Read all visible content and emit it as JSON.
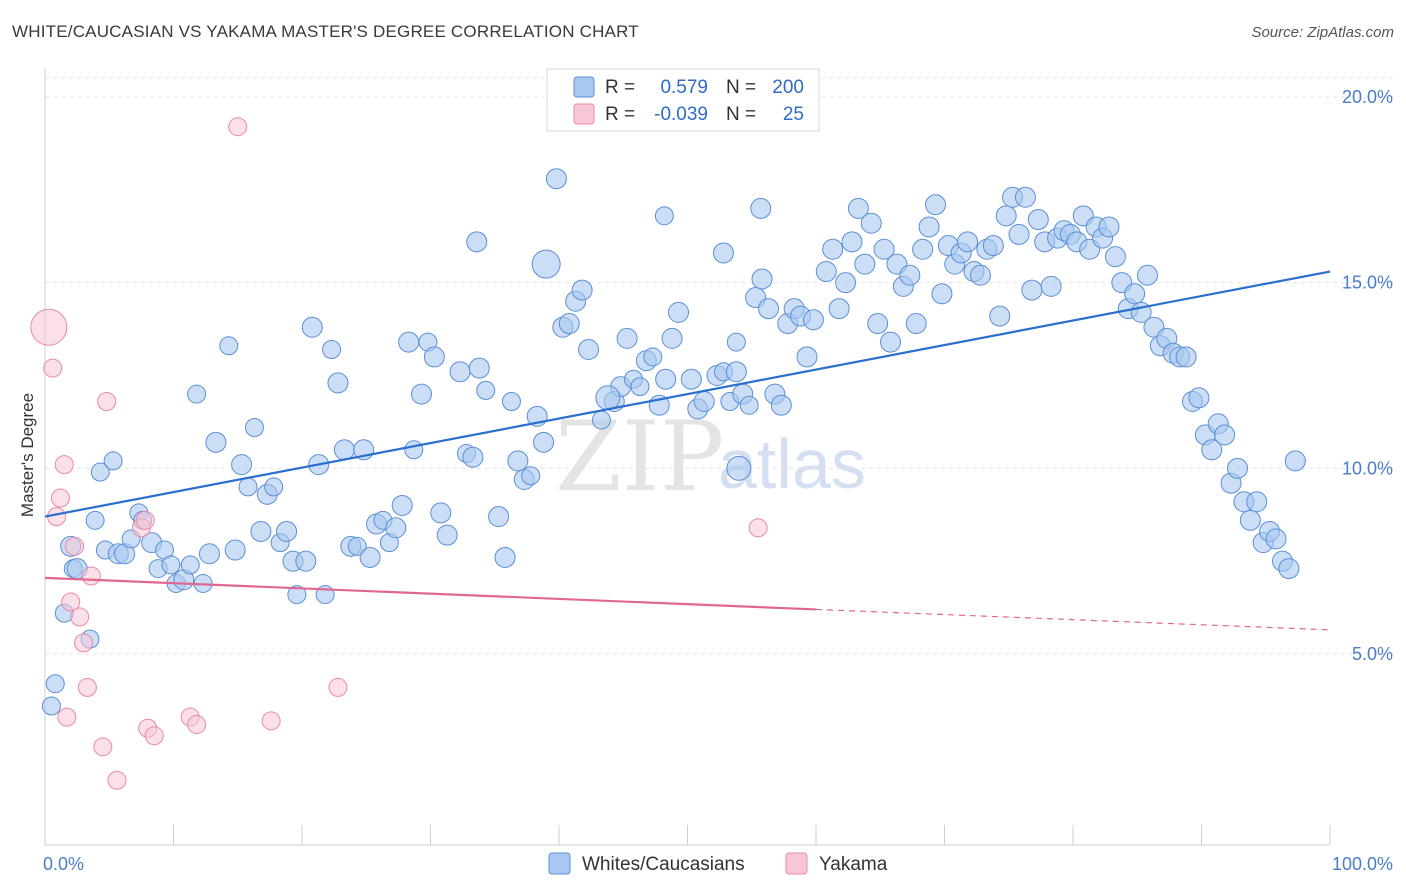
{
  "title": "WHITE/CAUCASIAN VS YAKAMA MASTER'S DEGREE CORRELATION CHART",
  "source": "Source: ZipAtlas.com",
  "watermark": {
    "zip": "ZIP",
    "atlas": "atlas"
  },
  "colors": {
    "blue_fill": "#a9c8f0",
    "blue_stroke": "#5b8fd6",
    "blue_line": "#2a6fcf",
    "pink_fill": "#f8c6d6",
    "pink_stroke": "#e88aa6",
    "pink_line": "#e06890",
    "grid": "#e4e4e4",
    "axis_label": "#4a7cc9"
  },
  "legend_top": {
    "rows": [
      {
        "r_label": "R =",
        "r_value": "0.579",
        "n_label": "N =",
        "n_value": "200"
      },
      {
        "r_label": "R =",
        "r_value": "-0.039",
        "n_label": "N =",
        "n_value": "25"
      }
    ]
  },
  "legend_bottom": [
    {
      "label": "Whites/Caucasians"
    },
    {
      "label": "Yakama"
    }
  ],
  "chart_data": {
    "type": "scatter",
    "title": "WHITE/CAUCASIAN VS YAKAMA MASTER'S DEGREE CORRELATION CHART",
    "xlabel": "",
    "ylabel": "Master's Degree",
    "xlim": [
      0,
      100
    ],
    "ylim": [
      0,
      20
    ],
    "x_tick_labels": [
      "0.0%",
      "100.0%"
    ],
    "y_ticks": [
      5,
      10,
      15,
      20
    ],
    "y_tick_labels": [
      "5.0%",
      "10.0%",
      "15.0%",
      "20.0%"
    ],
    "grid": true,
    "series": [
      {
        "name": "Whites/Caucasians",
        "r": 0.579,
        "n": 200,
        "trend": {
          "x": [
            0,
            100
          ],
          "y": [
            8.7,
            15.3
          ]
        },
        "points": [
          [
            0.5,
            3.6,
            9
          ],
          [
            0.8,
            4.2,
            9
          ],
          [
            1.5,
            6.1,
            9
          ],
          [
            2.0,
            7.9,
            10
          ],
          [
            2.2,
            7.3,
            9
          ],
          [
            2.5,
            7.3,
            10
          ],
          [
            3.5,
            5.4,
            9
          ],
          [
            3.9,
            8.6,
            9
          ],
          [
            4.3,
            9.9,
            9
          ],
          [
            4.7,
            7.8,
            9
          ],
          [
            5.3,
            10.2,
            9
          ],
          [
            5.7,
            7.7,
            10
          ],
          [
            6.2,
            7.7,
            10
          ],
          [
            6.7,
            8.1,
            9
          ],
          [
            7.3,
            8.8,
            9
          ],
          [
            7.6,
            8.6,
            9
          ],
          [
            8.3,
            8.0,
            10
          ],
          [
            8.8,
            7.3,
            9
          ],
          [
            9.3,
            7.8,
            9
          ],
          [
            9.8,
            7.4,
            9
          ],
          [
            10.2,
            6.9,
            9
          ],
          [
            10.8,
            7.0,
            10
          ],
          [
            11.3,
            7.4,
            9
          ],
          [
            11.8,
            12.0,
            9
          ],
          [
            12.3,
            6.9,
            9
          ],
          [
            12.8,
            7.7,
            10
          ],
          [
            13.3,
            10.7,
            10
          ],
          [
            14.3,
            13.3,
            9
          ],
          [
            14.8,
            7.8,
            10
          ],
          [
            15.3,
            10.1,
            10
          ],
          [
            15.8,
            9.5,
            9
          ],
          [
            16.3,
            11.1,
            9
          ],
          [
            16.8,
            8.3,
            10
          ],
          [
            17.3,
            9.3,
            10
          ],
          [
            17.8,
            9.5,
            9
          ],
          [
            18.3,
            8.0,
            9
          ],
          [
            18.8,
            8.3,
            10
          ],
          [
            19.3,
            7.5,
            10
          ],
          [
            19.6,
            6.6,
            9
          ],
          [
            20.3,
            7.5,
            10
          ],
          [
            20.8,
            13.8,
            10
          ],
          [
            21.3,
            10.1,
            10
          ],
          [
            21.8,
            6.6,
            9
          ],
          [
            22.3,
            13.2,
            9
          ],
          [
            22.8,
            12.3,
            10
          ],
          [
            23.3,
            10.5,
            10
          ],
          [
            23.8,
            7.9,
            10
          ],
          [
            24.3,
            7.9,
            9
          ],
          [
            24.8,
            10.5,
            10
          ],
          [
            25.3,
            7.6,
            10
          ],
          [
            25.8,
            8.5,
            10
          ],
          [
            26.3,
            8.6,
            9
          ],
          [
            26.8,
            8.0,
            9
          ],
          [
            27.3,
            8.4,
            10
          ],
          [
            27.8,
            9.0,
            10
          ],
          [
            28.3,
            13.4,
            10
          ],
          [
            28.7,
            10.5,
            9
          ],
          [
            29.3,
            12.0,
            10
          ],
          [
            29.8,
            13.4,
            9
          ],
          [
            30.3,
            13.0,
            10
          ],
          [
            30.8,
            8.8,
            10
          ],
          [
            31.3,
            8.2,
            10
          ],
          [
            32.3,
            12.6,
            10
          ],
          [
            32.8,
            10.4,
            9
          ],
          [
            33.3,
            10.3,
            10
          ],
          [
            33.8,
            12.7,
            10
          ],
          [
            34.3,
            12.1,
            9
          ],
          [
            35.3,
            8.7,
            10
          ],
          [
            35.8,
            7.6,
            10
          ],
          [
            36.3,
            11.8,
            9
          ],
          [
            36.8,
            10.2,
            10
          ],
          [
            37.3,
            9.7,
            10
          ],
          [
            37.8,
            9.8,
            9
          ],
          [
            38.3,
            11.4,
            10
          ],
          [
            38.8,
            10.7,
            10
          ],
          [
            40.3,
            13.8,
            10
          ],
          [
            40.8,
            13.9,
            10
          ],
          [
            41.3,
            14.5,
            10
          ],
          [
            41.8,
            14.8,
            10
          ],
          [
            42.3,
            13.2,
            10
          ],
          [
            43.3,
            11.3,
            9
          ],
          [
            44.3,
            11.8,
            10
          ],
          [
            44.8,
            12.2,
            10
          ],
          [
            45.3,
            13.5,
            10
          ],
          [
            45.8,
            12.4,
            9
          ],
          [
            46.3,
            12.2,
            9
          ],
          [
            46.8,
            12.9,
            10
          ],
          [
            47.3,
            13.0,
            9
          ],
          [
            47.8,
            11.7,
            10
          ],
          [
            48.3,
            12.4,
            10
          ],
          [
            48.8,
            13.5,
            10
          ],
          [
            49.3,
            14.2,
            10
          ],
          [
            50.3,
            12.4,
            10
          ],
          [
            50.8,
            11.6,
            10
          ],
          [
            51.3,
            11.8,
            10
          ],
          [
            52.3,
            12.5,
            10
          ],
          [
            52.8,
            12.6,
            9
          ],
          [
            53.3,
            11.8,
            9
          ],
          [
            53.8,
            12.6,
            10
          ],
          [
            54.3,
            12.0,
            10
          ],
          [
            54.8,
            11.7,
            9
          ],
          [
            55.3,
            14.6,
            10
          ],
          [
            55.8,
            15.1,
            10
          ],
          [
            56.3,
            14.3,
            10
          ],
          [
            56.8,
            12.0,
            10
          ],
          [
            57.3,
            11.7,
            10
          ],
          [
            57.8,
            13.9,
            10
          ],
          [
            58.3,
            14.3,
            10
          ],
          [
            58.8,
            14.1,
            10
          ],
          [
            59.3,
            13.0,
            10
          ],
          [
            59.8,
            14.0,
            10
          ],
          [
            60.8,
            15.3,
            10
          ],
          [
            61.3,
            15.9,
            10
          ],
          [
            61.8,
            14.3,
            10
          ],
          [
            62.3,
            15.0,
            10
          ],
          [
            62.8,
            16.1,
            10
          ],
          [
            63.3,
            17.0,
            10
          ],
          [
            63.8,
            15.5,
            10
          ],
          [
            64.3,
            16.6,
            10
          ],
          [
            64.8,
            13.9,
            10
          ],
          [
            65.3,
            15.9,
            10
          ],
          [
            65.8,
            13.4,
            10
          ],
          [
            66.3,
            15.5,
            10
          ],
          [
            66.8,
            14.9,
            10
          ],
          [
            67.3,
            15.2,
            10
          ],
          [
            67.8,
            13.9,
            10
          ],
          [
            68.3,
            15.9,
            10
          ],
          [
            68.8,
            16.5,
            10
          ],
          [
            69.3,
            17.1,
            10
          ],
          [
            69.8,
            14.7,
            10
          ],
          [
            70.3,
            16.0,
            10
          ],
          [
            70.8,
            15.5,
            10
          ],
          [
            71.3,
            15.8,
            10
          ],
          [
            71.8,
            16.1,
            10
          ],
          [
            72.3,
            15.3,
            10
          ],
          [
            72.8,
            15.2,
            10
          ],
          [
            73.3,
            15.9,
            10
          ],
          [
            73.8,
            16.0,
            10
          ],
          [
            74.3,
            14.1,
            10
          ],
          [
            74.8,
            16.8,
            10
          ],
          [
            75.3,
            17.3,
            10
          ],
          [
            75.8,
            16.3,
            10
          ],
          [
            76.3,
            17.3,
            10
          ],
          [
            76.8,
            14.8,
            10
          ],
          [
            77.3,
            16.7,
            10
          ],
          [
            77.8,
            16.1,
            10
          ],
          [
            78.3,
            14.9,
            10
          ],
          [
            78.8,
            16.2,
            10
          ],
          [
            79.3,
            16.4,
            10
          ],
          [
            79.8,
            16.3,
            10
          ],
          [
            80.3,
            16.1,
            10
          ],
          [
            80.8,
            16.8,
            10
          ],
          [
            81.3,
            15.9,
            10
          ],
          [
            81.8,
            16.5,
            10
          ],
          [
            82.3,
            16.2,
            10
          ],
          [
            82.8,
            16.5,
            10
          ],
          [
            83.3,
            15.7,
            10
          ],
          [
            83.8,
            15.0,
            10
          ],
          [
            84.3,
            14.3,
            10
          ],
          [
            84.8,
            14.7,
            10
          ],
          [
            85.3,
            14.2,
            10
          ],
          [
            85.8,
            15.2,
            10
          ],
          [
            86.3,
            13.8,
            10
          ],
          [
            86.8,
            13.3,
            10
          ],
          [
            87.3,
            13.5,
            10
          ],
          [
            87.8,
            13.1,
            10
          ],
          [
            88.3,
            13.0,
            10
          ],
          [
            88.8,
            13.0,
            10
          ],
          [
            89.3,
            11.8,
            10
          ],
          [
            89.8,
            11.9,
            10
          ],
          [
            90.3,
            10.9,
            10
          ],
          [
            90.8,
            10.5,
            10
          ],
          [
            91.3,
            11.2,
            10
          ],
          [
            91.8,
            10.9,
            10
          ],
          [
            92.3,
            9.6,
            10
          ],
          [
            92.8,
            10.0,
            10
          ],
          [
            93.3,
            9.1,
            10
          ],
          [
            93.8,
            8.6,
            10
          ],
          [
            94.3,
            9.1,
            10
          ],
          [
            94.8,
            8.0,
            10
          ],
          [
            95.3,
            8.3,
            10
          ],
          [
            95.8,
            8.1,
            10
          ],
          [
            96.3,
            7.5,
            10
          ],
          [
            96.8,
            7.3,
            10
          ],
          [
            97.3,
            10.2,
            10
          ],
          [
            39.0,
            15.5,
            14
          ],
          [
            39.8,
            17.8,
            10
          ],
          [
            43.8,
            11.9,
            12
          ],
          [
            48.2,
            16.8,
            9
          ],
          [
            52.8,
            15.8,
            10
          ],
          [
            53.8,
            13.4,
            9
          ],
          [
            33.6,
            16.1,
            10
          ],
          [
            54.0,
            10.0,
            12
          ],
          [
            55.7,
            17.0,
            10
          ]
        ]
      },
      {
        "name": "Yakama",
        "r": -0.039,
        "n": 25,
        "trend_solid": {
          "x": [
            0,
            60
          ],
          "y": [
            7.05,
            6.2
          ]
        },
        "trend_dashed": {
          "x": [
            60,
            100
          ],
          "y": [
            6.2,
            5.65
          ]
        },
        "points": [
          [
            0.3,
            13.8,
            18
          ],
          [
            0.6,
            12.7,
            9
          ],
          [
            0.9,
            8.7,
            9
          ],
          [
            1.2,
            9.2,
            9
          ],
          [
            1.5,
            10.1,
            9
          ],
          [
            1.7,
            3.3,
            9
          ],
          [
            2.0,
            6.4,
            9
          ],
          [
            2.3,
            7.9,
            9
          ],
          [
            2.7,
            6.0,
            9
          ],
          [
            3.0,
            5.3,
            9
          ],
          [
            3.3,
            4.1,
            9
          ],
          [
            3.6,
            7.1,
            9
          ],
          [
            4.5,
            2.5,
            9
          ],
          [
            4.8,
            11.8,
            9
          ],
          [
            5.6,
            1.6,
            9
          ],
          [
            7.5,
            8.4,
            9
          ],
          [
            7.8,
            8.6,
            9
          ],
          [
            8.0,
            3.0,
            9
          ],
          [
            8.5,
            2.8,
            9
          ],
          [
            11.3,
            3.3,
            9
          ],
          [
            11.8,
            3.1,
            9
          ],
          [
            15.0,
            19.2,
            9
          ],
          [
            17.6,
            3.2,
            9
          ],
          [
            22.8,
            4.1,
            9
          ],
          [
            55.5,
            8.4,
            9
          ]
        ]
      }
    ]
  }
}
